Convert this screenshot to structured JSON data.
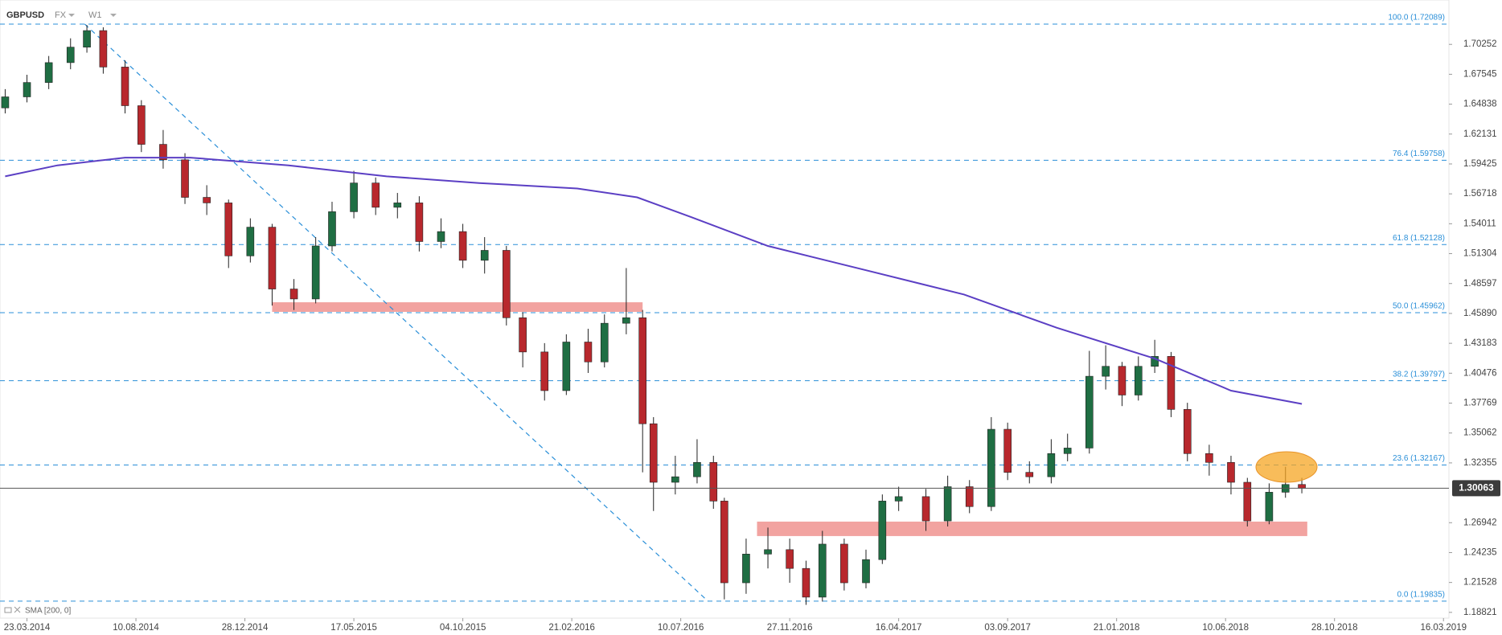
{
  "chart_data": {
    "type": "candlestick",
    "symbol": "GBPUSD",
    "market": "FX",
    "interval": "W1",
    "up_color": "#1f6e43",
    "down_color": "#b8282d",
    "x": [
      -4,
      0,
      4,
      8,
      11,
      14,
      18,
      21,
      25,
      29,
      33,
      37,
      41,
      45,
      49,
      53,
      56,
      60,
      64,
      68,
      72,
      76,
      80,
      84,
      88,
      91,
      95,
      99,
      103,
      106,
      110,
      113,
      115,
      119,
      123,
      126,
      128,
      132,
      136,
      140,
      143,
      146,
      150,
      154,
      157,
      160,
      165,
      169,
      173,
      177,
      180,
      184,
      188,
      191,
      195,
      198,
      201,
      204,
      207,
      210,
      213,
      217,
      221,
      224,
      228,
      231,
      234
    ],
    "open": [
      1.645,
      1.655,
      1.668,
      1.686,
      1.7,
      1.715,
      1.682,
      1.647,
      1.612,
      1.598,
      1.564,
      1.559,
      1.511,
      1.537,
      1.481,
      1.472,
      1.52,
      1.551,
      1.577,
      1.555,
      1.559,
      1.524,
      1.533,
      1.507,
      1.516,
      1.455,
      1.424,
      1.389,
      1.433,
      1.415,
      1.45,
      1.455,
      1.359,
      1.306,
      1.311,
      1.324,
      1.289,
      1.215,
      1.241,
      1.245,
      1.228,
      1.202,
      1.25,
      1.215,
      1.236,
      1.289,
      1.293,
      1.271,
      1.302,
      1.284,
      1.354,
      1.315,
      1.311,
      1.332,
      1.337,
      1.402,
      1.411,
      1.385,
      1.411,
      1.42,
      1.372,
      1.332,
      1.324,
      1.306,
      1.271,
      1.297,
      1.304
    ],
    "high": [
      1.662,
      1.675,
      1.692,
      1.708,
      1.72,
      1.718,
      1.688,
      1.652,
      1.625,
      1.604,
      1.575,
      1.562,
      1.545,
      1.54,
      1.49,
      1.528,
      1.56,
      1.588,
      1.582,
      1.568,
      1.565,
      1.545,
      1.54,
      1.528,
      1.52,
      1.46,
      1.432,
      1.44,
      1.445,
      1.458,
      1.5,
      1.462,
      1.365,
      1.33,
      1.345,
      1.33,
      1.292,
      1.255,
      1.265,
      1.255,
      1.235,
      1.262,
      1.255,
      1.245,
      1.295,
      1.302,
      1.3,
      1.312,
      1.308,
      1.365,
      1.36,
      1.325,
      1.345,
      1.35,
      1.425,
      1.43,
      1.415,
      1.42,
      1.435,
      1.424,
      1.378,
      1.34,
      1.33,
      1.31,
      1.305,
      1.32,
      1.31
    ],
    "low": [
      1.64,
      1.65,
      1.662,
      1.68,
      1.695,
      1.676,
      1.64,
      1.605,
      1.59,
      1.558,
      1.548,
      1.5,
      1.505,
      1.466,
      1.462,
      1.468,
      1.515,
      1.545,
      1.548,
      1.545,
      1.515,
      1.518,
      1.5,
      1.495,
      1.448,
      1.41,
      1.38,
      1.385,
      1.405,
      1.41,
      1.44,
      1.315,
      1.28,
      1.295,
      1.305,
      1.282,
      1.2,
      1.205,
      1.228,
      1.215,
      1.195,
      1.198,
      1.208,
      1.21,
      1.232,
      1.28,
      1.262,
      1.266,
      1.278,
      1.28,
      1.308,
      1.305,
      1.305,
      1.325,
      1.332,
      1.39,
      1.375,
      1.38,
      1.405,
      1.365,
      1.325,
      1.312,
      1.295,
      1.266,
      1.268,
      1.292,
      1.296
    ],
    "close": [
      1.655,
      1.668,
      1.686,
      1.7,
      1.715,
      1.682,
      1.647,
      1.612,
      1.598,
      1.564,
      1.559,
      1.511,
      1.537,
      1.481,
      1.472,
      1.52,
      1.551,
      1.577,
      1.555,
      1.559,
      1.524,
      1.533,
      1.507,
      1.516,
      1.455,
      1.424,
      1.389,
      1.433,
      1.415,
      1.45,
      1.455,
      1.359,
      1.306,
      1.311,
      1.324,
      1.289,
      1.215,
      1.241,
      1.245,
      1.228,
      1.202,
      1.25,
      1.215,
      1.236,
      1.289,
      1.293,
      1.271,
      1.302,
      1.284,
      1.354,
      1.315,
      1.311,
      1.332,
      1.337,
      1.402,
      1.411,
      1.385,
      1.411,
      1.42,
      1.372,
      1.332,
      1.324,
      1.306,
      1.271,
      1.297,
      1.304,
      1.30063
    ],
    "sma": {
      "name": "SMA [200, 0]",
      "color": "#5b3fc4",
      "x": [
        -4,
        5.6,
        18,
        30,
        48,
        66,
        83,
        101,
        112,
        122,
        136,
        154,
        172,
        189,
        207,
        221,
        234
      ],
      "values": [
        1.583,
        1.593,
        1.6,
        1.6,
        1.593,
        1.583,
        1.577,
        1.572,
        1.564,
        1.546,
        1.52,
        1.498,
        1.476,
        1.446,
        1.418,
        1.389,
        1.377
      ]
    },
    "fib_levels": [
      {
        "value": 1.72089,
        "label": "100.0 (1.72089)"
      },
      {
        "value": 1.59758,
        "label": "76.4 (1.59758)"
      },
      {
        "value": 1.52128,
        "label": "61.8 (1.52128)"
      },
      {
        "value": 1.45962,
        "label": "50.0 (1.45962)"
      },
      {
        "value": 1.39797,
        "label": "38.2 (1.39797)"
      },
      {
        "value": 1.32167,
        "label": "23.6 (1.32167)"
      },
      {
        "value": 1.19835,
        "label": "0.0 (1.19835)"
      }
    ],
    "fib_color": "#2a8fd8",
    "trendline": {
      "x": [
        10.6,
        125
      ],
      "y": [
        1.72089,
        1.19835
      ]
    },
    "zones": [
      {
        "x": [
          45,
          113
        ],
        "y": [
          1.4603,
          1.469
        ]
      },
      {
        "x": [
          134,
          235
        ],
        "y": [
          1.2573,
          1.2704
        ]
      }
    ],
    "zone_color": "#f2a3a0",
    "xlim": [
      -4.95,
      261
    ],
    "ylim": [
      1.183,
      1.7427
    ],
    "xticks": [
      {
        "value": 0,
        "label": "23.03.2014"
      },
      {
        "value": 20,
        "label": "10.08.2014"
      },
      {
        "value": 40,
        "label": "28.12.2014"
      },
      {
        "value": 60,
        "label": "17.05.2015"
      },
      {
        "value": 80,
        "label": "04.10.2015"
      },
      {
        "value": 100,
        "label": "21.02.2016"
      },
      {
        "value": 120,
        "label": "10.07.2016"
      },
      {
        "value": 140,
        "label": "27.11.2016"
      },
      {
        "value": 160,
        "label": "16.04.2017"
      },
      {
        "value": 180,
        "label": "03.09.2017"
      },
      {
        "value": 200,
        "label": "21.01.2018"
      },
      {
        "value": 220,
        "label": "10.06.2018"
      },
      {
        "value": 240,
        "label": "28.10.2018"
      },
      {
        "value": 260,
        "label": "16.03.2019"
      }
    ],
    "yticks": [
      1.70252,
      1.67545,
      1.64838,
      1.62131,
      1.59425,
      1.56718,
      1.54011,
      1.51304,
      1.48597,
      {
        "value": 1.4589,
        "label": "1.45890"
      },
      1.43183,
      1.40476,
      1.37769,
      1.35062,
      1.32355,
      1.26942,
      1.24235,
      1.21528,
      1.18821
    ]
  }
}
